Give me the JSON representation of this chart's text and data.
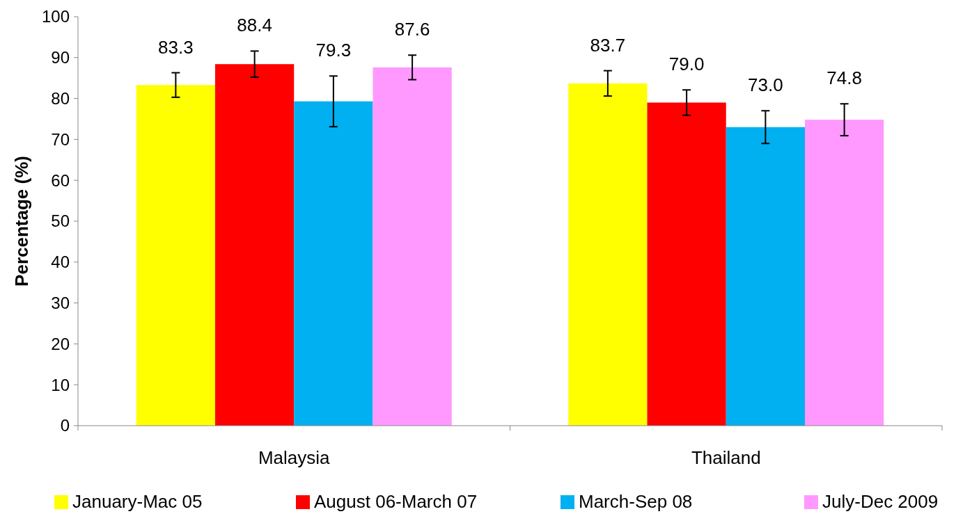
{
  "chart_data": {
    "type": "bar",
    "ylabel": "Percentage (%)",
    "categories": [
      "Malaysia",
      "Thailand"
    ],
    "series": [
      {
        "name": "January-Mac 05",
        "color": "#ffff00",
        "values": [
          83.3,
          83.7
        ],
        "value_labels": [
          "83.3",
          "83.7"
        ],
        "errors": [
          3.0,
          3.1
        ]
      },
      {
        "name": "August 06-March 07",
        "color": "#ff0000",
        "values": [
          88.4,
          79.0
        ],
        "value_labels": [
          "88.4",
          "79.0"
        ],
        "errors": [
          3.2,
          3.1
        ]
      },
      {
        "name": "March-Sep 08",
        "color": "#00b0f0",
        "values": [
          79.3,
          73.0
        ],
        "value_labels": [
          "79.3",
          "73.0"
        ],
        "errors": [
          6.2,
          4.0
        ]
      },
      {
        "name": "July-Dec 2009",
        "color": "#ff99ff",
        "values": [
          87.6,
          74.8
        ],
        "value_labels": [
          "87.6",
          "74.8"
        ],
        "errors": [
          3.0,
          3.9
        ]
      }
    ],
    "ylim": [
      0,
      100
    ],
    "yticks": [
      0,
      10,
      20,
      30,
      40,
      50,
      60,
      70,
      80,
      90,
      100
    ],
    "legend": "bottom",
    "grid": false
  }
}
